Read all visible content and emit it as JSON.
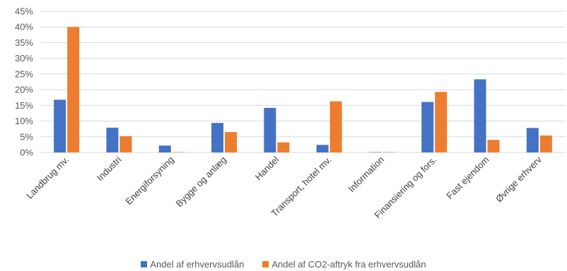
{
  "chart_data": {
    "type": "bar",
    "title": "",
    "xlabel": "",
    "ylabel": "",
    "ylim": [
      0,
      45
    ],
    "yticks": [
      0,
      5,
      10,
      15,
      20,
      25,
      30,
      35,
      40,
      45
    ],
    "ytick_format": "percent",
    "grid": "horizontal",
    "legend_position": "bottom",
    "categories": [
      "Landbrug mv.",
      "Industri",
      "Energiforsyning",
      "Bygge og anlæg",
      "Handel",
      "Transport, hotel mv.",
      "Information",
      "Finansiering og fors.",
      "Fast ejendom",
      "Øvrige erhverv"
    ],
    "series": [
      {
        "name": "Andel af erhvervsudlån",
        "color": "#4472C4",
        "values": [
          16.8,
          7.9,
          2.2,
          9.4,
          14.2,
          2.4,
          0.1,
          16.1,
          23.3,
          7.8
        ]
      },
      {
        "name": "Andel af CO2-aftryk fra erhvervsudlån",
        "color": "#ED7D31",
        "values": [
          40.0,
          5.2,
          0.1,
          6.5,
          3.2,
          16.3,
          0.1,
          19.3,
          4.0,
          5.4
        ]
      }
    ]
  }
}
